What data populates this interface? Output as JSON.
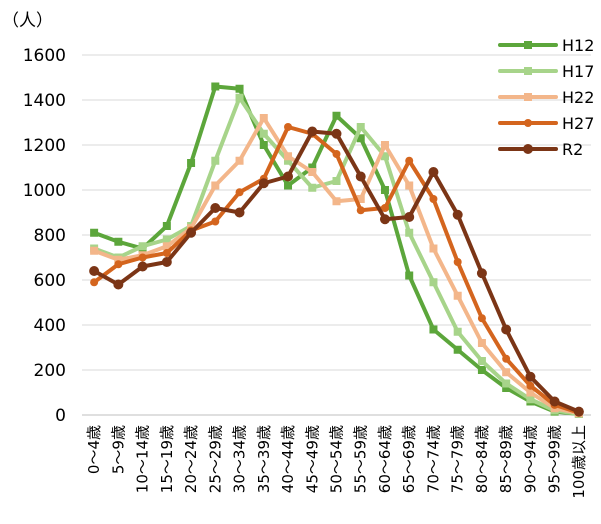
{
  "chart_data": {
    "type": "line",
    "unit_label": "（人）",
    "title": "",
    "xlabel": "",
    "ylabel": "",
    "ylim": [
      0,
      1600
    ],
    "yticks": [
      0,
      200,
      400,
      600,
      800,
      1000,
      1200,
      1400,
      1600
    ],
    "grid": true,
    "legend_position": "top-right",
    "categories": [
      "0～4歳",
      "5～9歳",
      "10～14歳",
      "15～19歳",
      "20～24歳",
      "25～29歳",
      "30～34歳",
      "35～39歳",
      "40～44歳",
      "45～49歳",
      "50～54歳",
      "55～59歳",
      "60～64歳",
      "65～69歳",
      "70～74歳",
      "75～79歳",
      "80～84歳",
      "85～89歳",
      "90～94歳",
      "95～99歳",
      "100歳以上"
    ],
    "series": [
      {
        "name": "H12",
        "color": "#5ca63b",
        "values": [
          810,
          770,
          740,
          840,
          1120,
          1460,
          1450,
          1200,
          1020,
          1100,
          1330,
          1230,
          1000,
          620,
          380,
          290,
          200,
          120,
          60,
          15,
          5
        ]
      },
      {
        "name": "H17",
        "color": "#a7d48a",
        "values": [
          740,
          700,
          750,
          780,
          840,
          1130,
          1410,
          1250,
          1130,
          1010,
          1040,
          1280,
          1150,
          810,
          590,
          370,
          240,
          140,
          70,
          20,
          5
        ]
      },
      {
        "name": "H22",
        "color": "#f3b68a",
        "values": [
          730,
          690,
          710,
          750,
          830,
          1020,
          1130,
          1320,
          1150,
          1080,
          950,
          960,
          1200,
          1020,
          740,
          530,
          320,
          190,
          100,
          30,
          8
        ]
      },
      {
        "name": "H27",
        "color": "#d4651e",
        "values": [
          590,
          670,
          700,
          720,
          820,
          860,
          990,
          1050,
          1280,
          1250,
          1160,
          910,
          920,
          1130,
          960,
          680,
          430,
          250,
          130,
          45,
          10
        ]
      },
      {
        "name": "R2",
        "color": "#7b3516",
        "values": [
          640,
          580,
          660,
          680,
          810,
          920,
          900,
          1030,
          1060,
          1260,
          1250,
          1060,
          870,
          880,
          1080,
          890,
          630,
          380,
          170,
          60,
          15
        ]
      }
    ]
  }
}
